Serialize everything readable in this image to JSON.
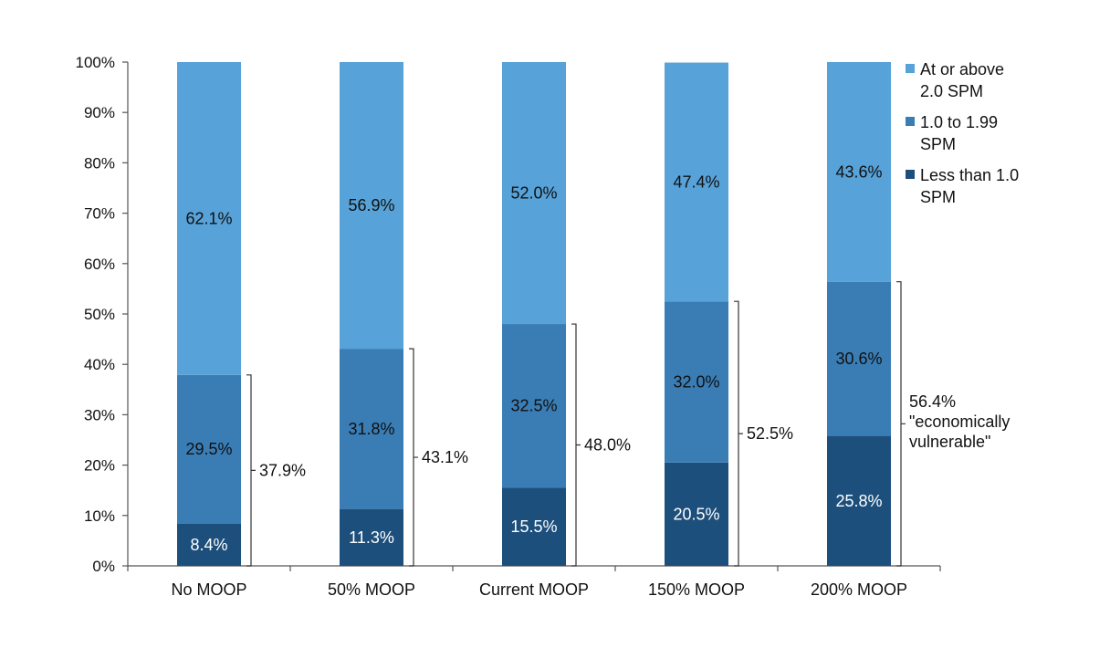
{
  "chart_data": {
    "type": "bar",
    "stacked": true,
    "percent": true,
    "categories": [
      "No MOOP",
      "50% MOOP",
      "Current MOOP",
      "150% MOOP",
      "200% MOOP"
    ],
    "series": [
      {
        "name": "Less than 1.0 SPM",
        "color": "#1d4f7c",
        "values": [
          8.4,
          11.3,
          15.5,
          20.5,
          25.8
        ],
        "labels": [
          "8.4%",
          "11.3%",
          "15.5%",
          "20.5%",
          "25.8%"
        ]
      },
      {
        "name": "1.0 to 1.99 SPM",
        "color": "#3a7db5",
        "values": [
          29.5,
          31.8,
          32.5,
          32.0,
          30.6
        ],
        "labels": [
          "29.5%",
          "31.8%",
          "32.5%",
          "32.0%",
          "30.6%"
        ]
      },
      {
        "name": "At or above 2.0 SPM",
        "color": "#57a2d8",
        "values": [
          62.1,
          56.9,
          52.0,
          47.4,
          43.6
        ],
        "labels": [
          "62.1%",
          "56.9%",
          "52.0%",
          "47.4%",
          "43.6%"
        ]
      }
    ],
    "brackets": [
      {
        "value": 37.9,
        "lines": [
          "37.9%"
        ]
      },
      {
        "value": 43.1,
        "lines": [
          "43.1%"
        ]
      },
      {
        "value": 48.0,
        "lines": [
          "48.0%"
        ]
      },
      {
        "value": 52.5,
        "lines": [
          "52.5%"
        ]
      },
      {
        "value": 56.4,
        "lines": [
          "56.4%",
          "\"economically",
          "vulnerable\""
        ]
      }
    ],
    "legend_entries": [
      {
        "lines": [
          "At or above",
          "2.0 SPM"
        ],
        "color": "#57a2d8"
      },
      {
        "lines": [
          "1.0 to 1.99",
          "SPM"
        ],
        "color": "#3a7db5"
      },
      {
        "lines": [
          "Less than 1.0",
          "SPM"
        ],
        "color": "#1d4f7c"
      }
    ],
    "yticks": [
      "0%",
      "10%",
      "20%",
      "30%",
      "40%",
      "50%",
      "60%",
      "70%",
      "80%",
      "90%",
      "100%"
    ],
    "ylim": [
      0,
      100
    ],
    "title": "",
    "xlabel": "",
    "ylabel": "",
    "grid": false,
    "legend_position": "right"
  }
}
